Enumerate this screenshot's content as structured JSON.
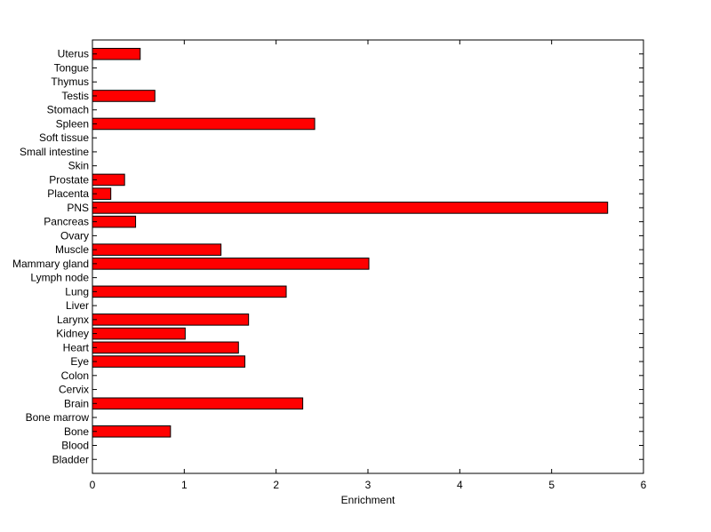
{
  "chart_data": {
    "type": "bar",
    "orientation": "horizontal",
    "xlabel": "Enrichment",
    "ylabel": "",
    "title": "",
    "xlim": [
      0,
      6
    ],
    "xticks": [
      0,
      1,
      2,
      3,
      4,
      5,
      6
    ],
    "grid": false,
    "bar_color": "#ff0000",
    "categories": [
      "Uterus",
      "Tongue",
      "Thymus",
      "Testis",
      "Stomach",
      "Spleen",
      "Soft tissue",
      "Small intestine",
      "Skin",
      "Prostate",
      "Placenta",
      "PNS",
      "Pancreas",
      "Ovary",
      "Muscle",
      "Mammary gland",
      "Lymph node",
      "Lung",
      "Liver",
      "Larynx",
      "Kidney",
      "Heart",
      "Eye",
      "Colon",
      "Cervix",
      "Brain",
      "Bone marrow",
      "Bone",
      "Blood",
      "Bladder"
    ],
    "values": [
      0.52,
      0,
      0,
      0.68,
      0,
      2.42,
      0,
      0,
      0,
      0.35,
      0.2,
      5.61,
      0.47,
      0,
      1.4,
      3.01,
      0,
      2.11,
      0,
      1.7,
      1.01,
      1.59,
      1.66,
      0,
      0,
      2.29,
      0,
      0.85,
      0,
      0
    ]
  }
}
